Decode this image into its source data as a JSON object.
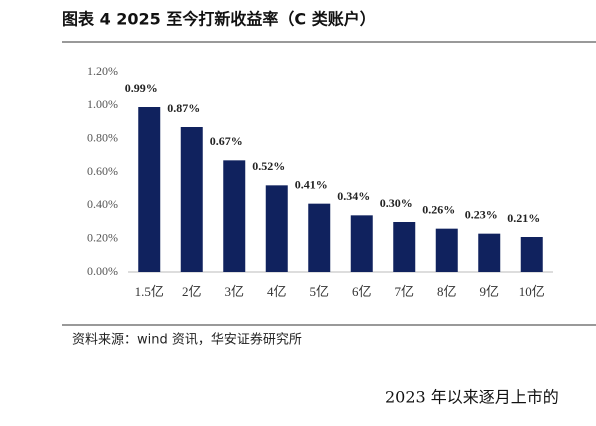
{
  "header": {
    "title": "图表 4 2025 至今打新收益率（C 类账户）"
  },
  "chart_data": {
    "type": "bar",
    "categories": [
      "1.5亿",
      "2亿",
      "3亿",
      "4亿",
      "5亿",
      "6亿",
      "7亿",
      "8亿",
      "9亿",
      "10亿"
    ],
    "values": [
      0.99,
      0.87,
      0.67,
      0.52,
      0.41,
      0.34,
      0.3,
      0.26,
      0.23,
      0.21
    ],
    "value_labels": [
      "0.99%",
      "0.87%",
      "0.67%",
      "0.52%",
      "0.41%",
      "0.34%",
      "0.30%",
      "0.26%",
      "0.23%",
      "0.21%"
    ],
    "color": "#10225e",
    "ylim": [
      0,
      1.2
    ],
    "yticks": [
      {
        "value": 0,
        "label": "0.00%"
      },
      {
        "value": 0.2,
        "label": "0.20%"
      },
      {
        "value": 0.4,
        "label": "0.40%"
      },
      {
        "value": 0.6,
        "label": "0.60%"
      },
      {
        "value": 0.8,
        "label": "0.80%"
      },
      {
        "value": 1.0,
        "label": "1.00%"
      },
      {
        "value": 1.2,
        "label": "1.20%"
      }
    ]
  },
  "source": "资料来源：wind 资讯，华安证券研究所",
  "body_text": "2023 年以来逐月上市的"
}
